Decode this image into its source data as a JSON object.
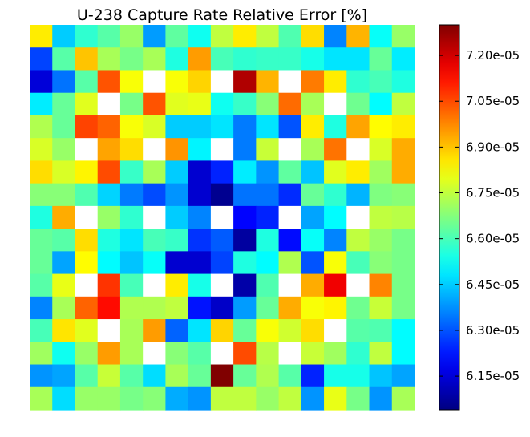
{
  "chart_data": {
    "type": "heatmap",
    "title": "U-238 Capture Rate Relative Error [%]",
    "xlabel": "",
    "ylabel": "",
    "rows": 17,
    "cols": 17,
    "colormap": "jet",
    "nan_color": "#ffffff",
    "vmin": 6.04e-05,
    "vmax": 7.3e-05,
    "colorbar_ticks": [
      7.2e-05,
      7.05e-05,
      6.9e-05,
      6.75e-05,
      6.6e-05,
      6.45e-05,
      6.3e-05,
      6.15e-05
    ],
    "colorbar_tick_labels": [
      "7.20e-05",
      "7.05e-05",
      "6.90e-05",
      "6.75e-05",
      "6.60e-05",
      "6.45e-05",
      "6.30e-05",
      "6.15e-05"
    ],
    "values": [
      [
        6.85e-05,
        6.45e-05,
        6.57e-05,
        6.62e-05,
        6.7e-05,
        6.39e-05,
        6.63e-05,
        6.53e-05,
        6.75e-05,
        6.85e-05,
        6.75e-05,
        6.61e-05,
        6.87e-05,
        6.36e-05,
        6.92e-05,
        6.52e-05,
        6.7e-05
      ],
      [
        6.28e-05,
        6.62e-05,
        6.9e-05,
        6.72e-05,
        6.66e-05,
        6.72e-05,
        6.55e-05,
        6.95e-05,
        6.6e-05,
        6.57e-05,
        6.58e-05,
        6.58e-05,
        6.54e-05,
        6.48e-05,
        6.48e-05,
        6.64e-05,
        6.49e-05
      ],
      [
        6.15e-05,
        6.34e-05,
        6.62e-05,
        7.04e-05,
        6.82e-05,
        null,
        6.82e-05,
        6.88e-05,
        null,
        7.24e-05,
        6.92e-05,
        null,
        6.99e-05,
        6.85e-05,
        6.57e-05,
        6.6e-05,
        6.55e-05
      ],
      [
        6.49e-05,
        6.64e-05,
        6.79e-05,
        null,
        6.66e-05,
        7.04e-05,
        6.79e-05,
        6.8e-05,
        6.53e-05,
        6.58e-05,
        6.68e-05,
        7.01e-05,
        6.72e-05,
        null,
        6.65e-05,
        6.51e-05,
        6.75e-05
      ],
      [
        6.73e-05,
        6.64e-05,
        7.06e-05,
        7.02e-05,
        6.82e-05,
        6.78e-05,
        6.45e-05,
        6.45e-05,
        6.48e-05,
        6.35e-05,
        6.48e-05,
        6.3e-05,
        6.85e-05,
        6.55e-05,
        6.94e-05,
        6.83e-05,
        6.85e-05
      ],
      [
        6.78e-05,
        6.7e-05,
        null,
        6.94e-05,
        6.87e-05,
        null,
        6.96e-05,
        6.5e-05,
        null,
        6.35e-05,
        6.76e-05,
        null,
        6.72e-05,
        7e-05,
        null,
        6.78e-05,
        6.93e-05
      ],
      [
        6.87e-05,
        6.78e-05,
        6.84e-05,
        7.05e-05,
        6.58e-05,
        6.72e-05,
        6.45e-05,
        6.14e-05,
        6.24e-05,
        6.49e-05,
        6.38e-05,
        6.63e-05,
        6.44e-05,
        6.79e-05,
        6.85e-05,
        6.71e-05,
        6.93e-05
      ],
      [
        6.68e-05,
        6.68e-05,
        6.61e-05,
        6.46e-05,
        6.35e-05,
        6.29e-05,
        6.38e-05,
        6.14e-05,
        6.06e-05,
        6.34e-05,
        6.34e-05,
        6.25e-05,
        6.64e-05,
        6.57e-05,
        6.42e-05,
        6.67e-05,
        6.68e-05
      ],
      [
        6.55e-05,
        6.93e-05,
        null,
        6.7e-05,
        6.57e-05,
        null,
        6.45e-05,
        6.36e-05,
        null,
        6.2e-05,
        6.24e-05,
        null,
        6.4e-05,
        6.51e-05,
        null,
        6.75e-05,
        6.74e-05
      ],
      [
        6.64e-05,
        6.62e-05,
        6.87e-05,
        6.55e-05,
        6.48e-05,
        6.6e-05,
        6.58e-05,
        6.26e-05,
        6.31e-05,
        6.08e-05,
        6.55e-05,
        6.21e-05,
        6.52e-05,
        6.36e-05,
        6.75e-05,
        6.7e-05,
        6.66e-05
      ],
      [
        6.64e-05,
        6.4e-05,
        6.83e-05,
        6.51e-05,
        6.44e-05,
        6.52e-05,
        6.14e-05,
        6.14e-05,
        6.28e-05,
        6.55e-05,
        6.51e-05,
        6.73e-05,
        6.3e-05,
        6.82e-05,
        6.6e-05,
        6.68e-05,
        6.66e-05
      ],
      [
        6.62e-05,
        6.8e-05,
        null,
        7.08e-05,
        6.6e-05,
        null,
        6.85e-05,
        6.54e-05,
        null,
        6.09e-05,
        6.61e-05,
        null,
        6.93e-05,
        7.16e-05,
        null,
        6.98e-05,
        6.66e-05
      ],
      [
        6.36e-05,
        6.72e-05,
        7.02e-05,
        7.13e-05,
        6.73e-05,
        6.73e-05,
        6.75e-05,
        6.22e-05,
        6.13e-05,
        6.39e-05,
        6.64e-05,
        6.93e-05,
        6.82e-05,
        6.84e-05,
        6.65e-05,
        6.76e-05,
        6.66e-05
      ],
      [
        6.6e-05,
        6.86e-05,
        6.79e-05,
        null,
        6.72e-05,
        6.95e-05,
        6.32e-05,
        6.48e-05,
        6.88e-05,
        6.64e-05,
        6.82e-05,
        6.77e-05,
        6.87e-05,
        null,
        6.62e-05,
        6.61e-05,
        6.51e-05
      ],
      [
        6.71e-05,
        6.53e-05,
        6.7e-05,
        6.95e-05,
        6.72e-05,
        null,
        6.68e-05,
        6.62e-05,
        null,
        7.05e-05,
        6.74e-05,
        null,
        6.76e-05,
        6.71e-05,
        6.57e-05,
        6.75e-05,
        6.51e-05
      ],
      [
        6.38e-05,
        6.4e-05,
        6.62e-05,
        6.76e-05,
        6.62e-05,
        6.47e-05,
        6.72e-05,
        6.64e-05,
        7.3e-05,
        6.64e-05,
        6.73e-05,
        6.62e-05,
        6.24e-05,
        6.54e-05,
        6.54e-05,
        6.44e-05,
        6.4e-05
      ],
      [
        6.72e-05,
        6.47e-05,
        6.7e-05,
        6.7e-05,
        6.66e-05,
        6.68e-05,
        6.41e-05,
        6.38e-05,
        6.75e-05,
        6.75e-05,
        6.7e-05,
        6.75e-05,
        6.38e-05,
        6.8e-05,
        6.66e-05,
        6.38e-05,
        6.72e-05
      ]
    ]
  }
}
